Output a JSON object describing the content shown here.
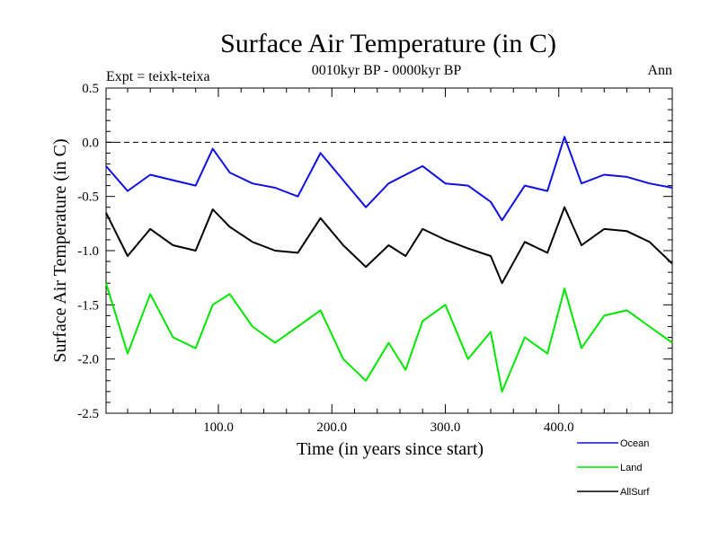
{
  "header": {
    "title": "Surface Air Temperature (in C)",
    "experiment": "Expt = teixk-teixa",
    "period": "0010kyr BP - 0000kyr BP",
    "season": "Ann"
  },
  "chart_data": {
    "type": "line",
    "title": "Surface Air Temperature (in C)",
    "subtitle": "0010kyr BP - 0000kyr BP",
    "xlabel": "Time (in years since start)",
    "ylabel": "Surface Air Temperature (in C)",
    "xlim": [
      1,
      500
    ],
    "ylim": [
      -2.5,
      0.5
    ],
    "x_ticks": [
      100,
      200,
      300,
      400
    ],
    "x_tick_labels": [
      "100.0",
      "200.0",
      "300.0",
      "400.0"
    ],
    "y_ticks": [
      0.5,
      0,
      -0.5,
      -1,
      -1.5,
      -2,
      -2.5
    ],
    "y_tick_labels": [
      "0.5",
      "0.0",
      "-0.5",
      "-1.0",
      "-1.5",
      "-2.0",
      "-2.5"
    ],
    "reference_line": {
      "y": 0.0,
      "style": "dashed"
    },
    "x": [
      1,
      20,
      40,
      60,
      80,
      95,
      110,
      130,
      150,
      170,
      190,
      210,
      230,
      250,
      265,
      280,
      300,
      320,
      340,
      350,
      370,
      390,
      405,
      420,
      440,
      460,
      480,
      500
    ],
    "series": [
      {
        "name": "Ocean",
        "color": "#1010e0",
        "values": [
          -0.22,
          -0.45,
          -0.3,
          -0.35,
          -0.4,
          -0.06,
          -0.28,
          -0.38,
          -0.42,
          -0.5,
          -0.1,
          -0.35,
          -0.6,
          -0.38,
          -0.3,
          -0.22,
          -0.38,
          -0.4,
          -0.55,
          -0.72,
          -0.4,
          -0.45,
          0.05,
          -0.38,
          -0.3,
          -0.32,
          -0.38,
          -0.42
        ]
      },
      {
        "name": "Land",
        "color": "#00e600",
        "values": [
          -1.3,
          -1.95,
          -1.4,
          -1.8,
          -1.9,
          -1.5,
          -1.4,
          -1.7,
          -1.85,
          -1.7,
          -1.55,
          -2.0,
          -2.2,
          -1.85,
          -2.1,
          -1.65,
          -1.5,
          -2.0,
          -1.75,
          -2.3,
          -1.8,
          -1.95,
          -1.35,
          -1.9,
          -1.6,
          -1.55,
          -1.7,
          -1.85
        ]
      },
      {
        "name": "AllSurf",
        "color": "#000000",
        "values": [
          -0.65,
          -1.05,
          -0.8,
          -0.95,
          -1.0,
          -0.62,
          -0.78,
          -0.92,
          -1.0,
          -1.02,
          -0.7,
          -0.95,
          -1.15,
          -0.95,
          -1.05,
          -0.8,
          -0.9,
          -0.98,
          -1.05,
          -1.3,
          -0.92,
          -1.02,
          -0.6,
          -0.95,
          -0.8,
          -0.82,
          -0.92,
          -1.12
        ]
      }
    ],
    "legend_position": "bottom-right"
  }
}
